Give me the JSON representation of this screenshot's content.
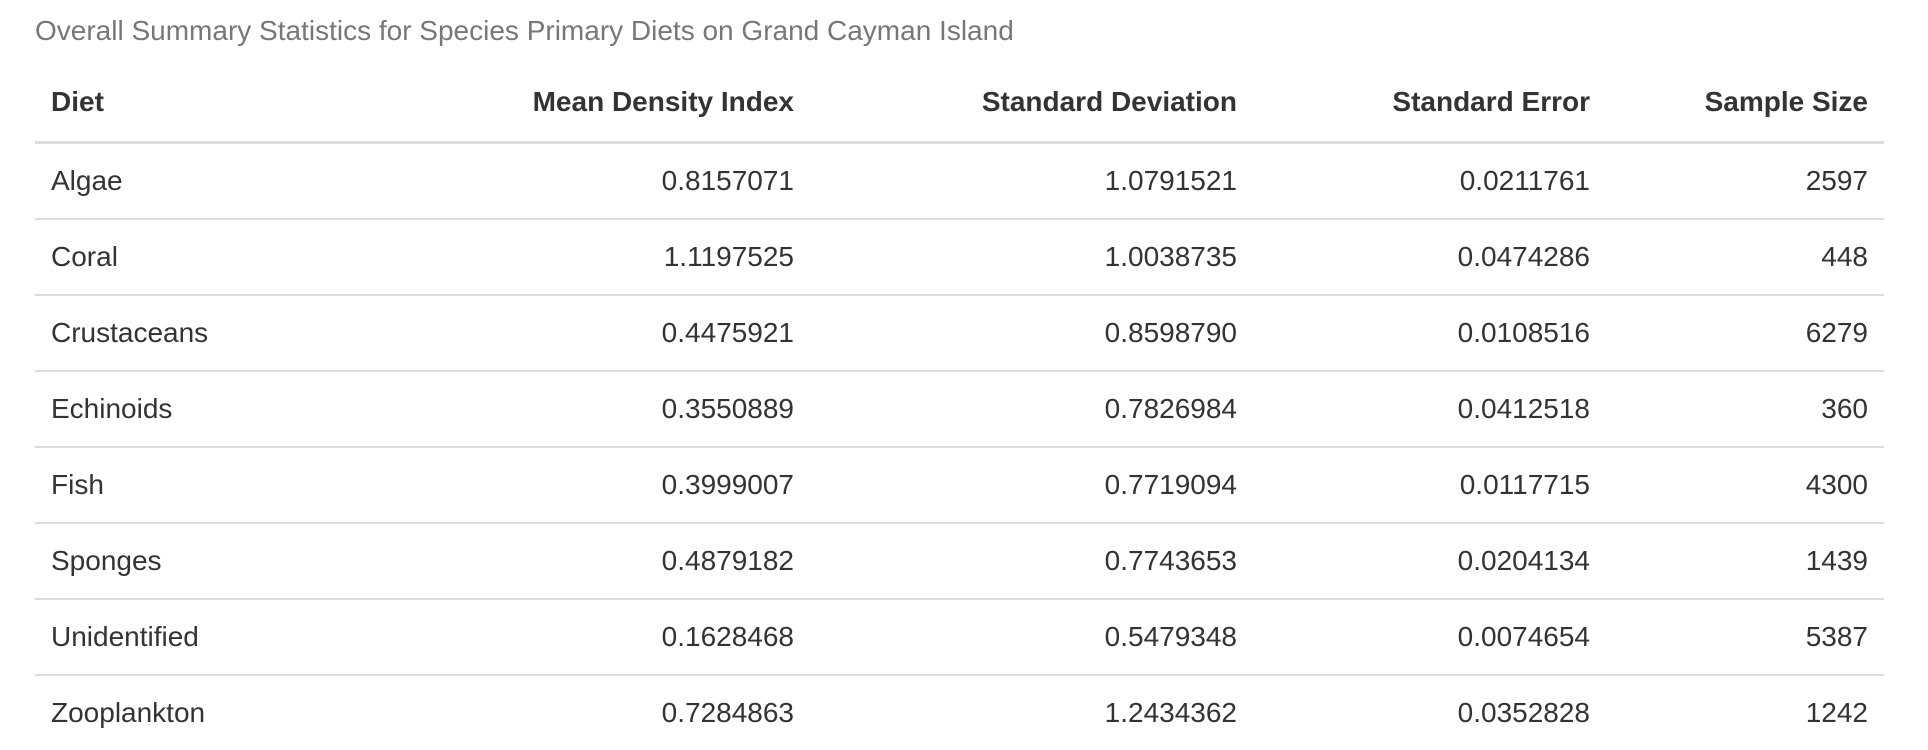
{
  "caption": "Overall Summary Statistics for Species Primary Diets on Grand Cayman Island",
  "table": {
    "headers": [
      "Diet",
      "Mean Density Index",
      "Standard Deviation",
      "Standard Error",
      "Sample Size"
    ],
    "rows": [
      [
        "Algae",
        "0.8157071",
        "1.0791521",
        "0.0211761",
        "2597"
      ],
      [
        "Coral",
        "1.1197525",
        "1.0038735",
        "0.0474286",
        "448"
      ],
      [
        "Crustaceans",
        "0.4475921",
        "0.8598790",
        "0.0108516",
        "6279"
      ],
      [
        "Echinoids",
        "0.3550889",
        "0.7826984",
        "0.0412518",
        "360"
      ],
      [
        "Fish",
        "0.3999007",
        "0.7719094",
        "0.0117715",
        "4300"
      ],
      [
        "Sponges",
        "0.4879182",
        "0.7743653",
        "0.0204134",
        "1439"
      ],
      [
        "Unidentified",
        "0.1628468",
        "0.5479348",
        "0.0074654",
        "5387"
      ],
      [
        "Zooplankton",
        "0.7284863",
        "1.2434362",
        "0.0352828",
        "1242"
      ]
    ]
  }
}
